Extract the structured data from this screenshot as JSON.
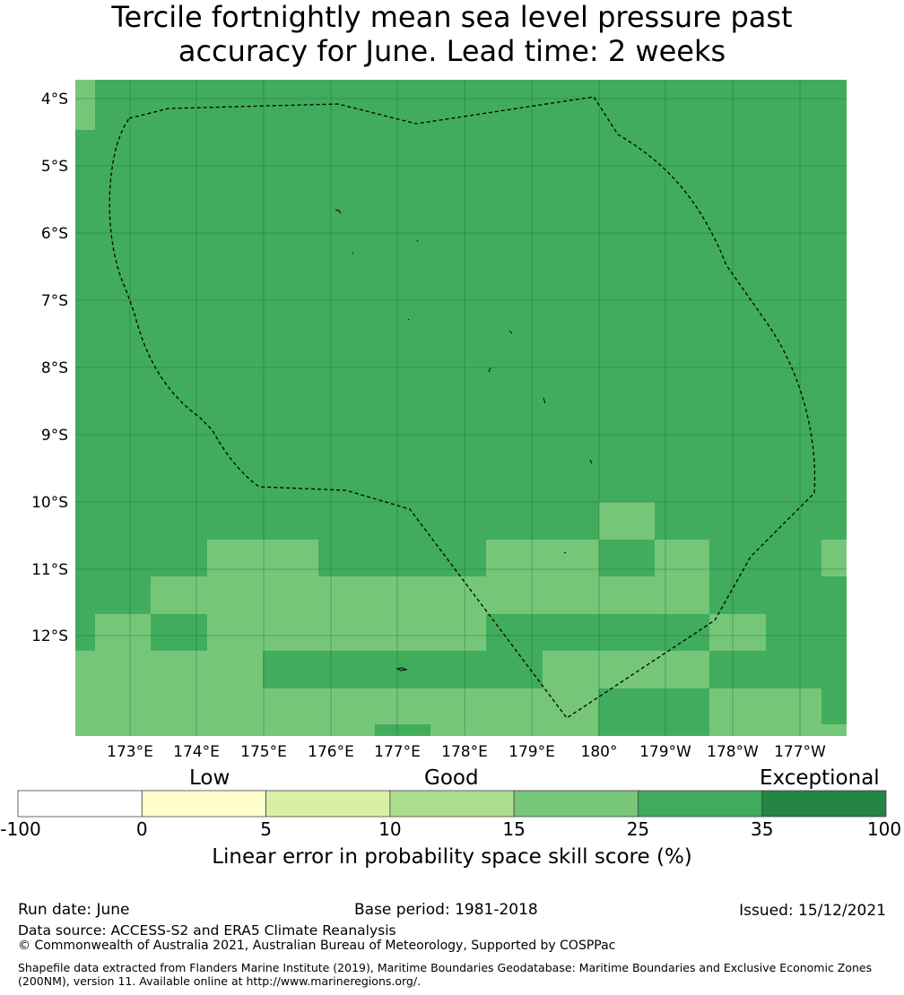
{
  "title": {
    "line1": "Tercile fortnightly mean sea level pressure past",
    "line2": "accuracy for June. Lead time: 2 weeks"
  },
  "map": {
    "lat_labels": [
      "4°S",
      "5°S",
      "6°S",
      "7°S",
      "8°S",
      "9°S",
      "10°S",
      "11°S",
      "12°S"
    ],
    "lon_labels": [
      "173°E",
      "174°E",
      "175°E",
      "176°E",
      "177°E",
      "178°E",
      "179°E",
      "180°",
      "179°W",
      "178°W",
      "177°W"
    ],
    "colors": {
      "good_15_25": "#76c67a",
      "good_25_35": "#41ac5d",
      "grid": "#1e6b35",
      "boundary": "#000000"
    },
    "boundary_style": "dashed EEZ outline"
  },
  "colorbar": {
    "categories": [
      "Low",
      "Good",
      "Exceptional"
    ],
    "ticks": [
      "-100",
      "0",
      "5",
      "10",
      "15",
      "25",
      "35",
      "100"
    ],
    "colors": [
      "#ffffff",
      "#ffffcc",
      "#d9f0a3",
      "#addd8e",
      "#78c679",
      "#41ab5d",
      "#238443"
    ],
    "label": "Linear error in probability space skill score (%)"
  },
  "footer": {
    "run_date": "Run date: June",
    "base_period": "Base period: 1981-2018",
    "issued": "Issued: 15/12/2021",
    "data_source": "Data source: ACCESS-S2 and ERA5 Climate Reanalysis",
    "copyright": "© Commonwealth of Australia 2021, Australian Bureau of Meteorology, Supported by COSPPac",
    "shapefile": "Shapefile data extracted from Flanders Marine Institute (2019), Maritime Boundaries Geodatabase: Maritime Boundaries and Exclusive Economic Zones (200NM), version 11. Available online at http://www.marineregions.org/."
  }
}
